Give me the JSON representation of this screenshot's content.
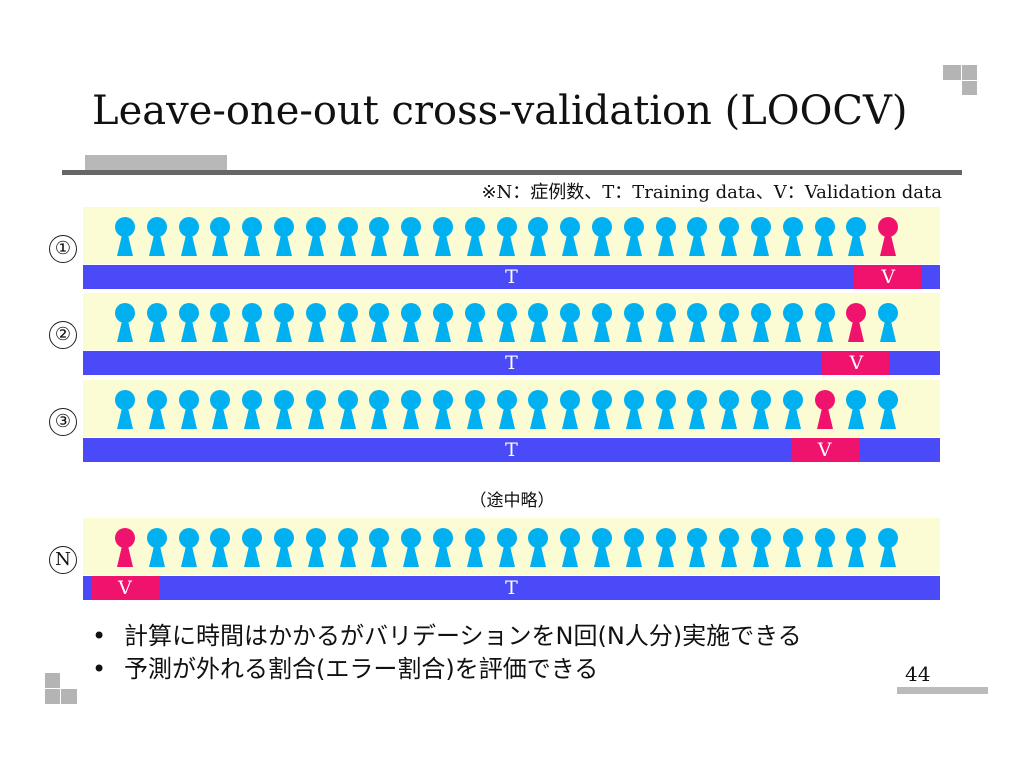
{
  "title": "Leave-one-out cross-validation (LOOCV)",
  "note": "※N：症例数、T：Training data、V：Validation data",
  "figures_per_row": 25,
  "colors": {
    "training": "#00b0f0",
    "validation": "#f0136e",
    "bar": "#4a4af8",
    "panel": "#fcfcd4"
  },
  "rows": [
    {
      "label": "①",
      "validation_index": 24,
      "t_label": "T",
      "v_label": "V"
    },
    {
      "label": "②",
      "validation_index": 23,
      "t_label": "T",
      "v_label": "V"
    },
    {
      "label": "③",
      "validation_index": 22,
      "t_label": "T",
      "v_label": "V"
    },
    {
      "label": "N",
      "validation_index": 0,
      "t_label": "T",
      "v_label": "V"
    }
  ],
  "omitted": "（途中略）",
  "bullets": [
    "計算に時間はかかるがバリデーションをN回(N人分)実施できる",
    "予測が外れる割合(エラー割合)を評価できる"
  ],
  "page_number": "44"
}
